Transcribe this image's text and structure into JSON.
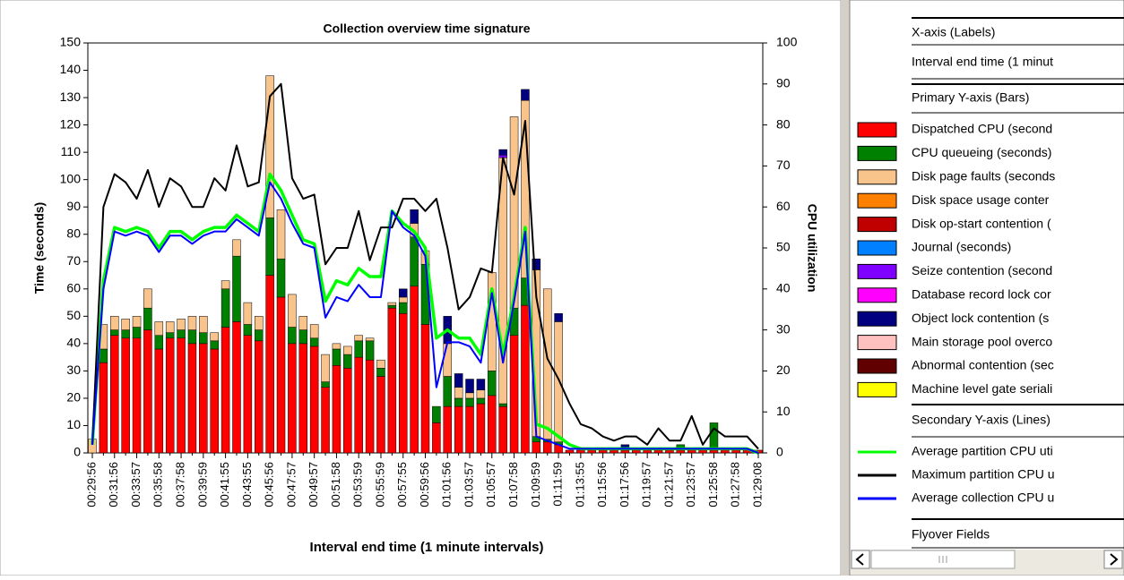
{
  "chart_data": {
    "type": "bar",
    "title": "Collection overview time signature",
    "xlabel": "Interval end time (1 minute intervals)",
    "ylabel": "Time (seconds)",
    "y2label": "CPU utilization",
    "stacked": true,
    "categories": [
      "00:29:56",
      null,
      "00:31:56",
      null,
      "00:33:57",
      null,
      "00:35:58",
      null,
      "00:37:58",
      null,
      "00:39:59",
      null,
      "00:41:55",
      null,
      "00:43:55",
      null,
      "00:45:56",
      null,
      "00:47:57",
      null,
      "00:49:57",
      null,
      "00:51:58",
      null,
      "00:53:59",
      null,
      "00:55:59",
      null,
      "00:57:55",
      null,
      "00:59:56",
      null,
      "01:01:56",
      null,
      "01:03:57",
      null,
      "01:05:57",
      null,
      "01:07:58",
      null,
      "01:09:59",
      null,
      "01:11:59",
      null,
      "01:13:55",
      null,
      "01:15:56",
      null,
      "01:17:56",
      null,
      "01:19:57",
      null,
      "01:21:57",
      null,
      "01:23:57",
      null,
      "01:25:58",
      null,
      "01:27:58",
      null,
      "01:29:08"
    ],
    "ylim": [
      0,
      150
    ],
    "yticks": [
      0,
      10,
      20,
      30,
      40,
      50,
      60,
      70,
      80,
      90,
      100,
      110,
      120,
      130,
      140,
      150
    ],
    "y2lim": [
      0,
      100
    ],
    "y2ticks": [
      0,
      10,
      20,
      30,
      40,
      50,
      60,
      70,
      80,
      90,
      100
    ],
    "series": [
      {
        "name": "Dispatched CPU (second",
        "color": "#ff0000",
        "values": [
          0,
          33,
          43,
          42,
          42,
          45,
          38,
          42,
          42,
          40,
          40,
          38,
          46,
          48,
          43,
          41,
          65,
          57,
          40,
          40,
          39,
          24,
          32,
          31,
          35,
          34,
          28,
          53,
          51,
          61,
          47,
          11,
          17,
          17,
          17,
          18,
          21,
          17,
          43,
          54,
          4,
          4,
          3,
          1,
          1,
          1,
          1,
          1,
          1,
          1,
          1,
          1,
          1,
          1,
          1,
          1,
          1,
          1,
          1,
          1,
          1
        ]
      },
      {
        "name": "CPU queueing (seconds)",
        "color": "#008000",
        "values": [
          0,
          5,
          2,
          3,
          4,
          8,
          5,
          2,
          3,
          5,
          4,
          3,
          14,
          24,
          4,
          4,
          21,
          14,
          6,
          5,
          3,
          2,
          6,
          5,
          6,
          7,
          3,
          1,
          4,
          18,
          22,
          6,
          11,
          3,
          3,
          2,
          9,
          1,
          10,
          10,
          2,
          1,
          1,
          0,
          0,
          0,
          0,
          0,
          0,
          0,
          0,
          0,
          0,
          2,
          0,
          0,
          10,
          0,
          0,
          0,
          0
        ]
      },
      {
        "name": "Disk page faults (seconds",
        "color": "#f9c48c",
        "values": [
          5,
          9,
          5,
          4,
          4,
          7,
          5,
          4,
          4,
          5,
          6,
          3,
          3,
          6,
          8,
          5,
          52,
          18,
          12,
          5,
          5,
          10,
          2,
          3,
          2,
          1,
          3,
          1,
          2,
          5,
          5,
          0,
          12,
          4,
          2,
          3,
          36,
          90,
          70,
          65,
          61,
          55,
          44,
          0,
          0,
          0,
          0,
          0,
          0,
          0,
          0,
          0,
          0,
          0,
          0,
          0,
          0,
          0,
          0,
          0,
          0
        ]
      },
      {
        "name": "Disk space usage conter",
        "color": "#ff8000",
        "values": [
          0,
          0,
          0,
          0,
          0,
          0,
          0,
          0,
          0,
          0,
          0,
          0,
          0,
          0,
          0,
          0,
          0,
          0,
          0,
          0,
          0,
          0,
          0,
          0,
          0,
          0,
          0,
          0,
          0,
          0,
          0,
          0,
          0,
          0,
          0,
          0,
          0,
          0,
          0,
          0,
          0,
          0,
          0,
          0,
          0,
          0,
          0,
          0,
          0,
          0,
          0,
          0,
          0,
          0,
          0,
          0,
          0,
          0,
          0,
          0,
          0
        ]
      },
      {
        "name": "Disk op-start contention (",
        "color": "#c00000",
        "values": [
          0,
          0,
          0,
          0,
          0,
          0,
          0,
          0,
          0,
          0,
          0,
          0,
          0,
          0,
          0,
          0,
          0,
          0,
          0,
          0,
          0,
          0,
          0,
          0,
          0,
          0,
          0,
          0,
          0,
          0,
          0,
          0,
          0,
          0,
          0,
          0,
          0,
          0,
          0,
          0,
          0,
          0,
          0,
          0,
          0,
          0,
          0,
          0,
          0,
          0,
          0,
          0,
          0,
          0,
          0,
          0,
          0,
          0,
          0,
          0,
          0
        ]
      },
      {
        "name": "Journal (seconds)",
        "color": "#0080ff",
        "values": [
          0,
          0,
          0,
          0,
          0,
          0,
          0,
          0,
          0,
          0,
          0,
          0,
          0,
          0,
          0,
          0,
          0,
          0,
          0,
          0,
          0,
          0,
          0,
          0,
          0,
          0,
          0,
          0,
          0,
          0,
          0,
          0,
          0,
          0,
          0,
          0,
          0,
          0,
          0,
          0,
          0,
          0,
          0,
          0,
          0,
          0,
          0,
          0,
          0,
          0,
          0,
          0,
          0,
          0,
          0,
          0,
          0,
          0,
          0,
          0,
          0
        ]
      },
      {
        "name": "Seize contention (second",
        "color": "#8000ff",
        "values": [
          0,
          0,
          0,
          0,
          0,
          0,
          0,
          0,
          0,
          0,
          0,
          0,
          0,
          0,
          0,
          0,
          0,
          0,
          0,
          0,
          0,
          0,
          0,
          0,
          0,
          0,
          0,
          0,
          0,
          0,
          0,
          0,
          0,
          0,
          0,
          0,
          0,
          1,
          0,
          0,
          0,
          0,
          0,
          0,
          0,
          0,
          0,
          0,
          0,
          0,
          0,
          0,
          0,
          0,
          0,
          0,
          0,
          0,
          0,
          0,
          0
        ]
      },
      {
        "name": "Database record lock cor",
        "color": "#ff00ff",
        "values": [
          0,
          0,
          0,
          0,
          0,
          0,
          0,
          0,
          0,
          0,
          0,
          0,
          0,
          0,
          0,
          0,
          0,
          0,
          0,
          0,
          0,
          0,
          0,
          0,
          0,
          0,
          0,
          0,
          0,
          0,
          0,
          0,
          0,
          0,
          0,
          0,
          0,
          0,
          0,
          0,
          0,
          0,
          0,
          0,
          0,
          0,
          0,
          0,
          0,
          0,
          0,
          0,
          0,
          0,
          0,
          0,
          0,
          0,
          0,
          0,
          0
        ]
      },
      {
        "name": "Object lock contention (s",
        "color": "#000080",
        "values": [
          0,
          0,
          0,
          0,
          0,
          0,
          0,
          0,
          0,
          0,
          0,
          0,
          0,
          0,
          0,
          0,
          0,
          0,
          0,
          0,
          0,
          0,
          0,
          0,
          0,
          0,
          0,
          0,
          3,
          5,
          0,
          0,
          10,
          5,
          5,
          4,
          0,
          2,
          0,
          4,
          4,
          0,
          3,
          0,
          0,
          0,
          0,
          0,
          2,
          0,
          0,
          0,
          0,
          0,
          0,
          0,
          0,
          0,
          0,
          0,
          0
        ]
      },
      {
        "name": "Main storage pool overco",
        "color": "#ffc0c0",
        "values": [
          0,
          0,
          0,
          0,
          0,
          0,
          0,
          0,
          0,
          0,
          0,
          0,
          0,
          0,
          0,
          0,
          0,
          0,
          0,
          0,
          0,
          0,
          0,
          0,
          0,
          0,
          0,
          0,
          0,
          0,
          0,
          0,
          0,
          0,
          0,
          0,
          0,
          0,
          0,
          0,
          0,
          0,
          0,
          0,
          0,
          0,
          0,
          0,
          0,
          0,
          0,
          0,
          0,
          0,
          0,
          0,
          0,
          0,
          0,
          0,
          0
        ]
      },
      {
        "name": "Abnormal contention (sec",
        "color": "#600000",
        "values": [
          0,
          0,
          0,
          0,
          0,
          0,
          0,
          0,
          0,
          0,
          0,
          0,
          0,
          0,
          0,
          0,
          0,
          0,
          0,
          0,
          0,
          0,
          0,
          0,
          0,
          0,
          0,
          0,
          0,
          0,
          0,
          0,
          0,
          0,
          0,
          0,
          0,
          0,
          0,
          0,
          0,
          0,
          0,
          0,
          0,
          0,
          0,
          0,
          0,
          0,
          0,
          0,
          0,
          0,
          0,
          0,
          0,
          0,
          0,
          0,
          0
        ]
      },
      {
        "name": "Machine level gate seriali",
        "color": "#ffff00",
        "values": [
          0,
          0,
          0,
          0,
          0,
          0,
          0,
          0,
          0,
          0,
          0,
          0,
          0,
          0,
          0,
          0,
          0,
          0,
          0,
          0,
          0,
          0,
          0,
          0,
          0,
          0,
          0,
          0,
          0,
          0,
          0,
          0,
          0,
          0,
          0,
          0,
          0,
          0,
          0,
          0,
          0,
          0,
          0,
          0,
          0,
          0,
          0,
          0,
          0,
          0,
          0,
          0,
          0,
          0,
          0,
          0,
          0,
          0,
          0,
          0,
          0
        ]
      },
      {
        "name": "Average partition CPU uti",
        "color": "#00ff00",
        "axis": "y2",
        "values": [
          2,
          42,
          55,
          54,
          55,
          54,
          50,
          54,
          54,
          52,
          54,
          55,
          55,
          58,
          56,
          54,
          68,
          64,
          58,
          52,
          51,
          37,
          42,
          41,
          45,
          43,
          43,
          59,
          56,
          54,
          50,
          28,
          30,
          28,
          28,
          24,
          40,
          24,
          38,
          55,
          7,
          6,
          4,
          2,
          1,
          1,
          1,
          1,
          1,
          1,
          1,
          1,
          1,
          1,
          1,
          1,
          1,
          1,
          1,
          1,
          0
        ]
      },
      {
        "name": "Maximum partition CPU u",
        "color": "#000000",
        "axis": "y2",
        "values": [
          2,
          60,
          68,
          66,
          62,
          69,
          60,
          67,
          65,
          60,
          60,
          67,
          64,
          75,
          65,
          66,
          87,
          90,
          67,
          62,
          63,
          46,
          50,
          50,
          59,
          47,
          55,
          55,
          62,
          62,
          59,
          62,
          50,
          35,
          38,
          45,
          44,
          72,
          63,
          81,
          38,
          23,
          18,
          12,
          7,
          6,
          4,
          3,
          4,
          4,
          2,
          6,
          3,
          3,
          9,
          2,
          6,
          4,
          4,
          4,
          1
        ]
      },
      {
        "name": "Average collection CPU u",
        "color": "#0000ff",
        "axis": "y2",
        "values": [
          2,
          40,
          54,
          53,
          54,
          53,
          49,
          53,
          53,
          51,
          53,
          54,
          54,
          57,
          55,
          53,
          66,
          62,
          56,
          51,
          50,
          33,
          38,
          37,
          41,
          38,
          38,
          59,
          55,
          53,
          48,
          16,
          27,
          27,
          26,
          22,
          39,
          22,
          37,
          54,
          4,
          3,
          2,
          1,
          1,
          1,
          1,
          1,
          1,
          1,
          1,
          1,
          1,
          1,
          1,
          1,
          1,
          1,
          1,
          1,
          0
        ]
      }
    ]
  },
  "panel": {
    "x_heading": "X-axis (Labels)",
    "x_value": "Interval end time (1 minut",
    "bars_heading": "Primary Y-axis (Bars)",
    "lines_heading": "Secondary Y-axis (Lines)",
    "flyover_heading": "Flyover Fields"
  }
}
